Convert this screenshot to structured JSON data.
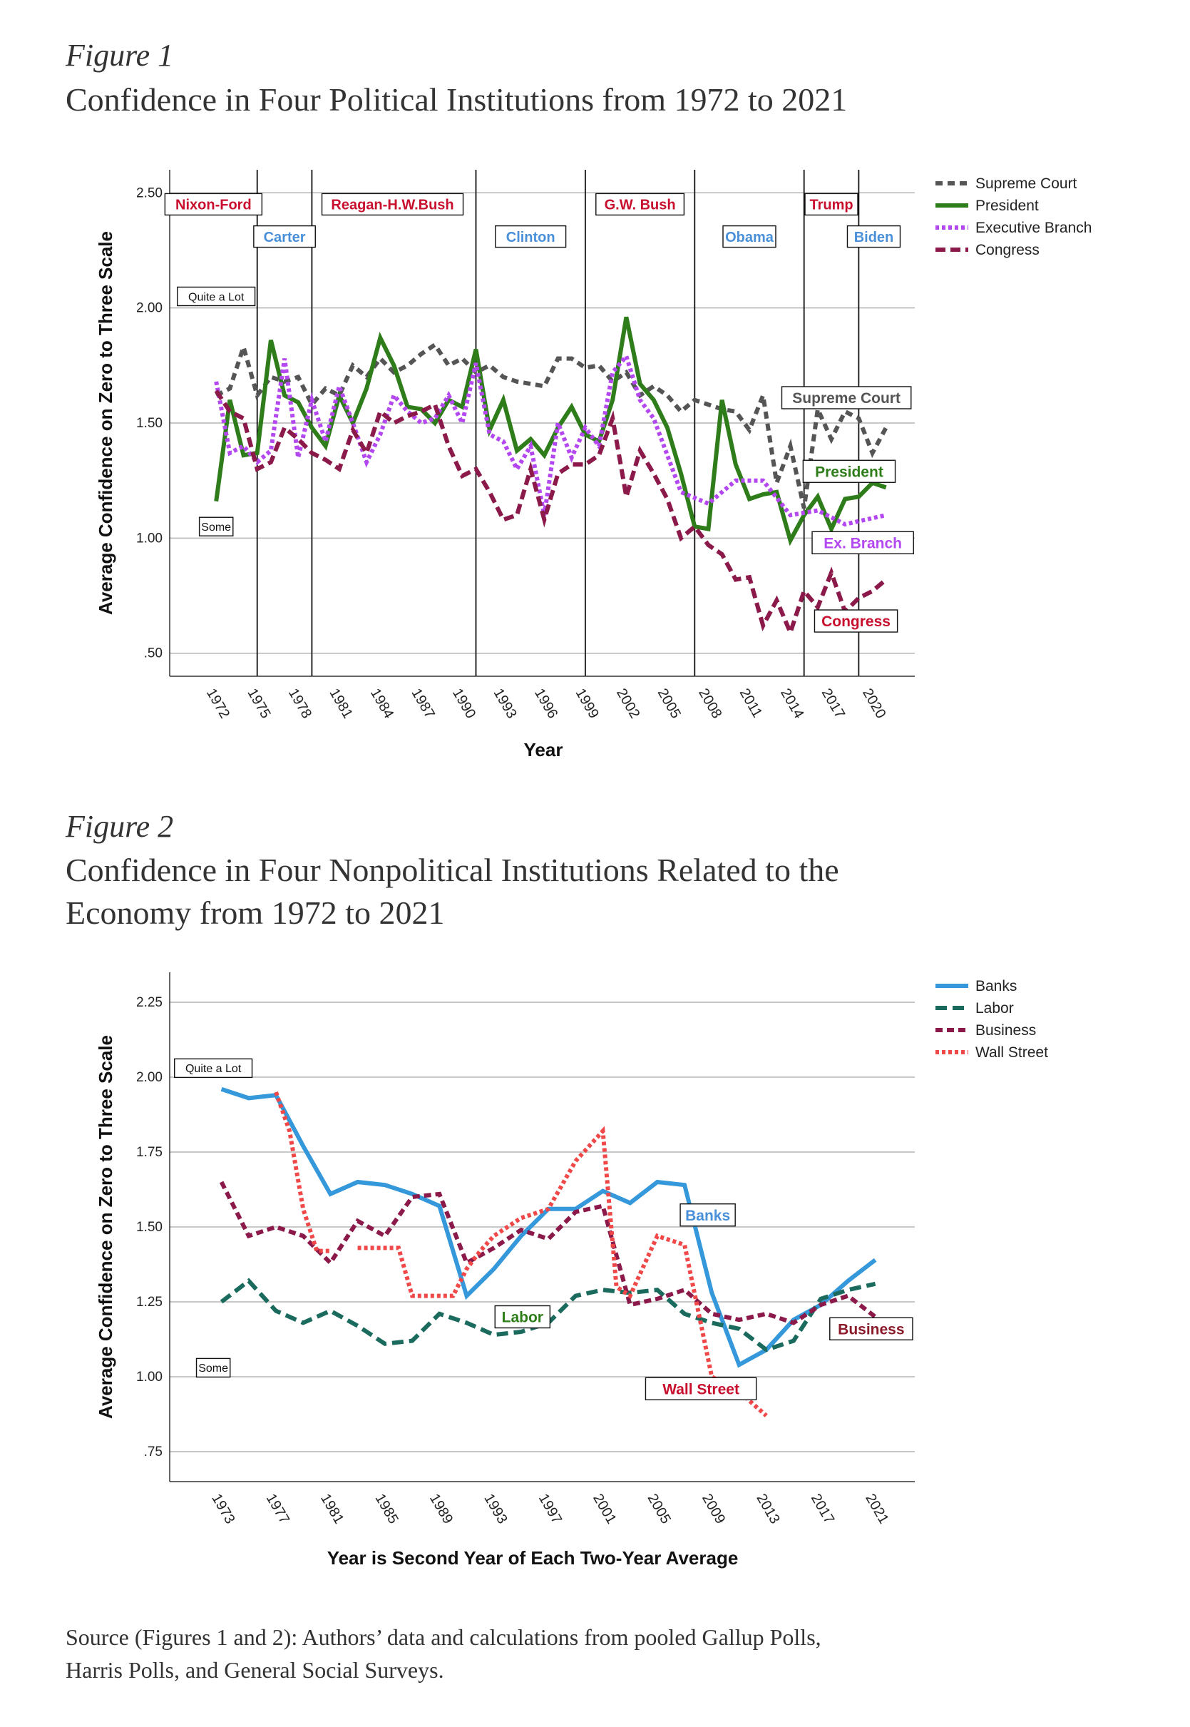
{
  "figure1": {
    "label": "Figure 1",
    "title": "Confidence in Four Political Institutions from 1972 to 2021"
  },
  "figure2": {
    "label": "Figure 2",
    "title_line1": "Confidence in Four Nonpolitical Institutions Related to the",
    "title_line2": "Economy from 1972 to 2021"
  },
  "source": {
    "line1": "Source (Figures 1 and 2): Authors’ data and calculations from pooled Gallup Polls,",
    "line2": "Harris Polls, and General Social Surveys."
  },
  "chart_data": [
    {
      "type": "line",
      "ylabel": "Average Confidence on Zero to Three Scale",
      "xlabel": "Year",
      "ylim": [
        0.4,
        2.6
      ],
      "xlim": [
        1968.6,
        2023.1
      ],
      "y_ticks": [
        0.5,
        1.0,
        1.5,
        2.0,
        2.5
      ],
      "y_tick_labels": [
        ".50",
        "1.00",
        "1.50",
        "2.00",
        "2.50"
      ],
      "x_ticks": [
        "1972",
        "1975",
        "1978",
        "1981",
        "1984",
        "1987",
        "1990",
        "1993",
        "1996",
        "1999",
        "2002",
        "2005",
        "2008",
        "2011",
        "2014",
        "2017",
        "2020"
      ],
      "grid": true,
      "legend_position": "top-right",
      "scale_annotations": [
        {
          "text": "Quite a Lot",
          "x": 1972,
          "y": 2.05
        },
        {
          "text": "Some",
          "x": 1972,
          "y": 1.05
        }
      ],
      "era_lines": [
        1975,
        1979,
        1991,
        1999,
        2007,
        2015,
        2019
      ],
      "eras": [
        {
          "label": "Nixon-Ford",
          "x": 1971.8,
          "y": 2.45,
          "color": "#c8102e"
        },
        {
          "label": "Carter",
          "x": 1977.0,
          "y": 2.31,
          "color": "#4a90d9"
        },
        {
          "label": "Reagan-H.W.Bush",
          "x": 1984.9,
          "y": 2.45,
          "color": "#c8102e"
        },
        {
          "label": "Clinton",
          "x": 1995.0,
          "y": 2.31,
          "color": "#4a90d9"
        },
        {
          "label": "G.W. Bush",
          "x": 2003.0,
          "y": 2.45,
          "color": "#c8102e"
        },
        {
          "label": "Obama",
          "x": 2011.0,
          "y": 2.31,
          "color": "#4a90d9"
        },
        {
          "label": "Trump",
          "x": 2017.0,
          "y": 2.45,
          "color": "#c8102e"
        },
        {
          "label": "Biden",
          "x": 2020.1,
          "y": 2.31,
          "color": "#4a90d9"
        }
      ],
      "series_labels": [
        {
          "text": "Supreme Court",
          "x": 2018.1,
          "y": 1.61,
          "color": "#555555"
        },
        {
          "text": "President",
          "x": 2018.3,
          "y": 1.29,
          "color": "#2e7d1a"
        },
        {
          "text": "Ex. Branch",
          "x": 2019.3,
          "y": 0.98,
          "color": "#b347f0"
        },
        {
          "text": "Congress",
          "x": 2018.8,
          "y": 0.64,
          "color": "#c8102e"
        }
      ],
      "series": [
        {
          "name": "Supreme Court",
          "color": "#555555",
          "dash": "10,7",
          "x": [
            1972,
            1973,
            1974,
            1975,
            1976,
            1977,
            1978,
            1979,
            1980,
            1981,
            1982,
            1983,
            1984,
            1985,
            1986,
            1987,
            1988,
            1989,
            1990,
            1991,
            1992,
            1993,
            1994,
            1995,
            1996,
            1997,
            1998,
            1999,
            2000,
            2001,
            2002,
            2003,
            2004,
            2005,
            2006,
            2007,
            2008,
            2009,
            2010,
            2011,
            2012,
            2013,
            2014,
            2015,
            2016,
            2017,
            2018,
            2019,
            2020,
            2021
          ],
          "y": [
            1.62,
            1.65,
            1.83,
            1.62,
            1.7,
            1.68,
            1.7,
            1.58,
            1.65,
            1.62,
            1.75,
            1.7,
            1.78,
            1.72,
            1.75,
            1.8,
            1.84,
            1.75,
            1.78,
            1.72,
            1.75,
            1.7,
            1.68,
            1.67,
            1.66,
            1.78,
            1.78,
            1.74,
            1.75,
            1.68,
            1.72,
            1.62,
            1.66,
            1.62,
            1.55,
            1.6,
            1.58,
            1.56,
            1.55,
            1.47,
            1.62,
            1.24,
            1.4,
            1.13,
            1.56,
            1.43,
            1.55,
            1.52,
            1.37,
            1.48
          ]
        },
        {
          "name": "President",
          "color": "#2e7d1a",
          "dash": "",
          "x": [
            1972,
            1973,
            1974,
            1975,
            1976,
            1977,
            1978,
            1979,
            1980,
            1981,
            1982,
            1983,
            1984,
            1985,
            1986,
            1987,
            1988,
            1989,
            1990,
            1991,
            1992,
            1993,
            1994,
            1995,
            1996,
            1997,
            1998,
            1999,
            2000,
            2001,
            2002,
            2003,
            2004,
            2005,
            2006,
            2007,
            2008,
            2009,
            2010,
            2011,
            2012,
            2013,
            2014,
            2015,
            2016,
            2017,
            2018,
            2019,
            2020,
            2021
          ],
          "y": [
            1.16,
            1.6,
            1.36,
            1.37,
            1.86,
            1.62,
            1.59,
            1.48,
            1.4,
            1.62,
            1.5,
            1.65,
            1.87,
            1.75,
            1.57,
            1.56,
            1.5,
            1.6,
            1.57,
            1.82,
            1.47,
            1.6,
            1.38,
            1.43,
            1.36,
            1.48,
            1.57,
            1.45,
            1.42,
            1.6,
            1.96,
            1.67,
            1.6,
            1.48,
            1.28,
            1.05,
            1.04,
            1.6,
            1.32,
            1.17,
            1.19,
            1.2,
            0.99,
            1.1,
            1.18,
            1.04,
            1.17,
            1.18,
            1.24,
            1.22
          ]
        },
        {
          "name": "Executive Branch",
          "color": "#b347f0",
          "dash": "5,4",
          "x": [
            1972,
            1973,
            1974,
            1975,
            1976,
            1977,
            1978,
            1979,
            1980,
            1981,
            1982,
            1983,
            1984,
            1985,
            1986,
            1987,
            1988,
            1989,
            1990,
            1991,
            1992,
            1993,
            1994,
            1995,
            1996,
            1997,
            1998,
            1999,
            2000,
            2001,
            2002,
            2003,
            2004,
            2006,
            2008,
            2010,
            2012,
            2014,
            2016,
            2018,
            2021
          ],
          "y": [
            1.68,
            1.37,
            1.4,
            1.33,
            1.38,
            1.78,
            1.35,
            1.6,
            1.42,
            1.66,
            1.5,
            1.33,
            1.45,
            1.62,
            1.55,
            1.5,
            1.52,
            1.62,
            1.5,
            1.76,
            1.45,
            1.42,
            1.3,
            1.4,
            1.1,
            1.5,
            1.35,
            1.48,
            1.4,
            1.72,
            1.79,
            1.6,
            1.52,
            1.2,
            1.15,
            1.25,
            1.25,
            1.1,
            1.12,
            1.06,
            1.1
          ]
        },
        {
          "name": "Congress",
          "color": "#8b1a4a",
          "dash": "14,7",
          "x": [
            1972,
            1973,
            1974,
            1975,
            1976,
            1977,
            1978,
            1979,
            1980,
            1981,
            1982,
            1983,
            1984,
            1985,
            1986,
            1987,
            1988,
            1989,
            1990,
            1991,
            1992,
            1993,
            1994,
            1995,
            1996,
            1997,
            1998,
            1999,
            2000,
            2001,
            2002,
            2003,
            2004,
            2005,
            2006,
            2007,
            2008,
            2009,
            2010,
            2011,
            2012,
            2013,
            2014,
            2015,
            2016,
            2017,
            2018,
            2019,
            2020,
            2021
          ],
          "y": [
            1.64,
            1.55,
            1.52,
            1.3,
            1.33,
            1.48,
            1.43,
            1.37,
            1.34,
            1.3,
            1.47,
            1.37,
            1.55,
            1.5,
            1.53,
            1.55,
            1.58,
            1.4,
            1.27,
            1.3,
            1.2,
            1.08,
            1.1,
            1.3,
            1.08,
            1.28,
            1.32,
            1.32,
            1.36,
            1.52,
            1.18,
            1.38,
            1.28,
            1.17,
            1.0,
            1.05,
            0.97,
            0.93,
            0.82,
            0.83,
            0.62,
            0.73,
            0.59,
            0.77,
            0.7,
            0.85,
            0.68,
            0.74,
            0.77,
            0.82
          ]
        }
      ]
    },
    {
      "type": "line",
      "ylabel": "Average Confidence on Zero to Three Scale",
      "xlabel": "Year is Second Year of Each Two-Year Average",
      "ylim": [
        0.65,
        2.35
      ],
      "xlim": [
        1969.2,
        2023.9
      ],
      "y_ticks": [
        0.75,
        1.0,
        1.25,
        1.5,
        1.75,
        2.0,
        2.25
      ],
      "y_tick_labels": [
        ".75",
        "1.00",
        "1.25",
        "1.50",
        "1.75",
        "2.00",
        "2.25"
      ],
      "x_ticks": [
        "1973",
        "1977",
        "1981",
        "1985",
        "1989",
        "1993",
        "1997",
        "2001",
        "2005",
        "2009",
        "2013",
        "2017",
        "2021"
      ],
      "grid": true,
      "legend_position": "top-right",
      "scale_annotations": [
        {
          "text": "Quite a Lot",
          "x": 1972.4,
          "y": 2.03
        },
        {
          "text": "Some",
          "x": 1972.4,
          "y": 1.03
        }
      ],
      "series_labels": [
        {
          "text": "Banks",
          "x": 2008.7,
          "y": 1.54,
          "color": "#4a90d9"
        },
        {
          "text": "Labor",
          "x": 1995.1,
          "y": 1.2,
          "color": "#2e7d1a"
        },
        {
          "text": "Business",
          "x": 2020.7,
          "y": 1.16,
          "color": "#8b1a2a"
        },
        {
          "text": "Wall Street",
          "x": 2008.2,
          "y": 0.96,
          "color": "#c8102e"
        }
      ],
      "series": [
        {
          "name": "Banks",
          "color": "#3498db",
          "dash": "",
          "x": [
            1973,
            1975,
            1977,
            1979,
            1981,
            1983,
            1985,
            1987,
            1989,
            1991,
            1993,
            1995,
            1997,
            1999,
            2001,
            2003,
            2005,
            2007,
            2009,
            2011,
            2013,
            2015,
            2017,
            2019,
            2021
          ],
          "y": [
            1.96,
            1.93,
            1.94,
            1.77,
            1.61,
            1.65,
            1.64,
            1.61,
            1.57,
            1.27,
            1.36,
            1.47,
            1.56,
            1.56,
            1.62,
            1.58,
            1.65,
            1.64,
            1.28,
            1.04,
            1.09,
            1.19,
            1.24,
            1.32,
            1.39
          ]
        },
        {
          "name": "Labor",
          "color": "#1a6b5e",
          "dash": "16,8",
          "x": [
            1973,
            1975,
            1977,
            1979,
            1981,
            1983,
            1985,
            1987,
            1989,
            1991,
            1993,
            1995,
            1997,
            1999,
            2001,
            2003,
            2005,
            2007,
            2009,
            2011,
            2013,
            2015,
            2017,
            2019,
            2021
          ],
          "y": [
            1.25,
            1.32,
            1.22,
            1.18,
            1.22,
            1.17,
            1.11,
            1.12,
            1.21,
            1.18,
            1.14,
            1.15,
            1.18,
            1.27,
            1.29,
            1.28,
            1.29,
            1.21,
            1.18,
            1.16,
            1.09,
            1.12,
            1.26,
            1.29,
            1.31
          ]
        },
        {
          "name": "Business",
          "color": "#8b1a4a",
          "dash": "10,6",
          "x": [
            1973,
            1975,
            1977,
            1979,
            1981,
            1983,
            1985,
            1987,
            1989,
            1991,
            1993,
            1995,
            1997,
            1999,
            2001,
            2003,
            2005,
            2007,
            2009,
            2011,
            2013,
            2015,
            2017,
            2019,
            2021
          ],
          "y": [
            1.65,
            1.47,
            1.5,
            1.47,
            1.38,
            1.52,
            1.47,
            1.6,
            1.61,
            1.38,
            1.43,
            1.49,
            1.46,
            1.55,
            1.57,
            1.24,
            1.26,
            1.29,
            1.21,
            1.19,
            1.21,
            1.18,
            1.24,
            1.27,
            1.2
          ]
        },
        {
          "name": "Wall Street",
          "color": "#f04848",
          "dash": "5,4",
          "x": [
            1977,
            1978,
            1979,
            1980,
            1981,
            1982,
            1983,
            1984,
            1985,
            1986,
            1987,
            1988,
            1989,
            1990,
            1991,
            1992,
            1993,
            1995,
            1997,
            1999,
            2001,
            2002,
            2003,
            2005,
            2007,
            2009,
            2011,
            2013
          ],
          "y": [
            1.95,
            1.82,
            1.56,
            1.42,
            1.42,
            null,
            1.43,
            1.43,
            1.43,
            1.43,
            1.27,
            1.27,
            1.27,
            1.27,
            1.36,
            1.42,
            1.47,
            1.53,
            1.56,
            1.72,
            1.82,
            1.3,
            1.27,
            1.47,
            1.44,
            1.0,
            0.95,
            0.87
          ]
        }
      ]
    }
  ]
}
